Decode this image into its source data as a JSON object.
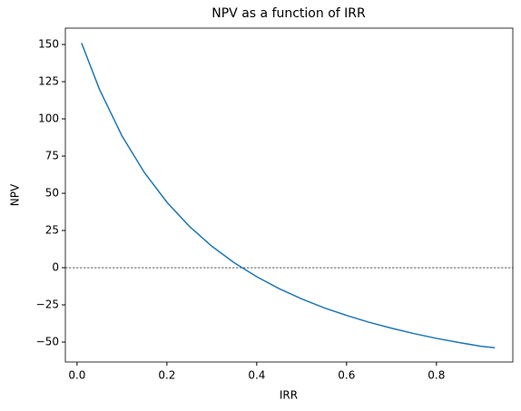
{
  "chart_data": {
    "type": "line",
    "title": "NPV as a function of IRR",
    "x_label": "IRR",
    "y_label": "NPV",
    "x": [
      0.01,
      0.05,
      0.1,
      0.15,
      0.2,
      0.25,
      0.3,
      0.35,
      0.4,
      0.45,
      0.5,
      0.55,
      0.6,
      0.65,
      0.7,
      0.75,
      0.8,
      0.85,
      0.9,
      0.93
    ],
    "series": [
      {
        "name": "NPV",
        "color": "#1f77b4",
        "values": [
          151,
          119.8,
          88.6,
          63.9,
          44.0,
          27.8,
          14.4,
          3.3,
          -6.1,
          -14.1,
          -21.0,
          -27.0,
          -32.1,
          -36.7,
          -40.7,
          -44.3,
          -47.5,
          -50.3,
          -52.9,
          -53.8
        ]
      }
    ],
    "reference_line": 0,
    "xlim": [
      -0.026,
      0.97
    ],
    "xticks": [
      {
        "value": 0,
        "label": "0.0"
      },
      0.2,
      0.4,
      0.6,
      0.8
    ],
    "ylim": [
      -63.4,
      161
    ],
    "yticks": [
      {
        "value": -50,
        "label": "−50"
      },
      {
        "value": -25,
        "label": "−25"
      },
      0,
      25,
      50,
      75,
      100,
      125,
      150
    ],
    "grid": false
  }
}
